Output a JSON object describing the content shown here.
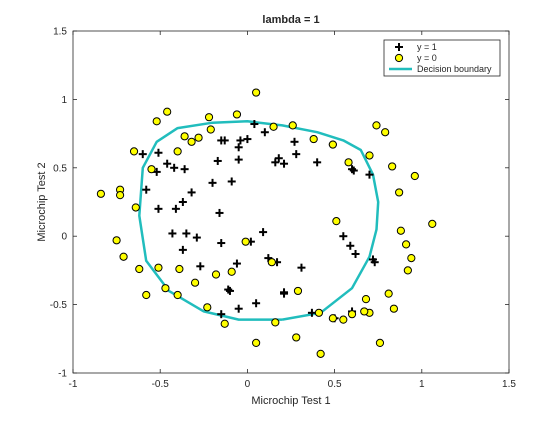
{
  "chart_data": {
    "type": "scatter",
    "title": "lambda = 1",
    "xlabel": "Microchip Test 1",
    "ylabel": "Microchip Test 2",
    "xlim": [
      -1,
      1.5
    ],
    "ylim": [
      -1,
      1.5
    ],
    "xticks": [
      "-1",
      "-0.5",
      "0",
      "0.5",
      "1",
      "1.5"
    ],
    "yticks": [
      "-1",
      "-0.5",
      "0",
      "0.5",
      "1",
      "1.5"
    ],
    "grid": false,
    "legend_position": "top-right",
    "series": [
      {
        "name": "y = 1",
        "marker": "plus",
        "color": "#000000",
        "x": [
          -0.52,
          -0.58,
          -0.46,
          -0.41,
          -0.32,
          -0.2,
          -0.09,
          -0.05,
          0.04,
          -0.13,
          -0.05,
          0.1,
          0.16,
          0.21,
          0.18,
          0.27,
          0.28,
          0.4,
          0.49,
          0.6,
          0.61,
          0.7,
          0.73,
          -0.6,
          -0.51,
          -0.42,
          -0.36,
          -0.17,
          -0.15,
          -0.04,
          0.0,
          -0.37,
          -0.51,
          -0.43,
          -0.16,
          -0.35,
          -0.29,
          -0.15,
          0.55,
          0.59,
          0.62,
          0.72,
          0.31,
          0.21,
          0.05,
          -0.05,
          -0.15,
          -0.27,
          -0.37,
          0.02,
          0.09,
          0.12,
          0.17,
          0.21,
          0.37,
          0.5,
          0.6,
          -0.1,
          -0.11,
          -0.06
        ],
        "y": [
          0.47,
          0.34,
          0.53,
          0.2,
          0.32,
          0.39,
          0.4,
          0.56,
          0.82,
          0.7,
          0.65,
          0.76,
          0.54,
          0.53,
          0.57,
          0.69,
          0.6,
          0.54,
          0.67,
          0.49,
          0.48,
          0.45,
          -0.19,
          0.6,
          0.61,
          0.5,
          0.49,
          0.55,
          0.7,
          0.7,
          0.71,
          0.25,
          0.2,
          0.02,
          0.17,
          0.02,
          -0.01,
          -0.05,
          0.0,
          -0.07,
          -0.13,
          -0.17,
          -0.23,
          -0.41,
          -0.49,
          -0.53,
          -0.57,
          -0.22,
          -0.1,
          -0.04,
          0.03,
          -0.16,
          -0.19,
          -0.42,
          -0.56,
          -0.6,
          -0.55,
          -0.4,
          -0.39,
          -0.2
        ]
      },
      {
        "name": "y = 0",
        "marker": "circle",
        "color": "#ffff00",
        "edge_color": "#000000",
        "x": [
          -0.84,
          -0.73,
          -0.64,
          -0.55,
          -0.52,
          -0.46,
          -0.4,
          -0.32,
          -0.28,
          -0.21,
          -0.06,
          0.05,
          0.15,
          0.26,
          0.38,
          0.49,
          0.58,
          0.7,
          0.74,
          0.79,
          0.83,
          0.87,
          0.88,
          0.91,
          0.94,
          1.06,
          0.92,
          0.96,
          0.81,
          0.84,
          0.7,
          0.67,
          0.6,
          0.49,
          0.41,
          0.29,
          0.16,
          0.05,
          -0.13,
          -0.23,
          -0.4,
          -0.51,
          -0.62,
          -0.71,
          -0.75,
          -0.73,
          -0.65,
          -0.58,
          -0.47,
          -0.39,
          -0.3,
          -0.18,
          -0.09,
          -0.01,
          0.14,
          0.28,
          0.42,
          0.55,
          0.68,
          0.76,
          -0.22,
          -0.36,
          0.51
        ],
        "y": [
          0.31,
          0.34,
          0.21,
          0.49,
          0.84,
          0.91,
          0.62,
          0.69,
          0.72,
          0.78,
          0.89,
          1.05,
          0.8,
          0.81,
          0.71,
          0.67,
          0.54,
          0.59,
          0.81,
          0.76,
          0.51,
          0.32,
          0.04,
          -0.06,
          -0.16,
          0.09,
          -0.25,
          0.44,
          -0.42,
          -0.53,
          -0.56,
          -0.55,
          -0.57,
          -0.6,
          -0.56,
          -0.4,
          -0.63,
          -0.78,
          -0.64,
          -0.52,
          -0.43,
          -0.23,
          -0.24,
          -0.15,
          -0.03,
          0.3,
          0.62,
          -0.43,
          -0.38,
          -0.24,
          -0.34,
          -0.28,
          -0.26,
          -0.04,
          -0.19,
          -0.74,
          -0.86,
          -0.61,
          -0.46,
          -0.78,
          0.87,
          0.73,
          0.11
        ]
      },
      {
        "name": "Decision boundary",
        "type": "line",
        "color": "#21bdbd",
        "x": [
          0.2,
          0.42,
          0.6,
          0.7,
          0.74,
          0.75,
          0.72,
          0.65,
          0.55,
          0.4,
          0.2,
          0.0,
          -0.2,
          -0.4,
          -0.52,
          -0.6,
          -0.62,
          -0.58,
          -0.45,
          -0.25,
          -0.05,
          0.2
        ],
        "y": [
          -0.61,
          -0.56,
          -0.38,
          -0.15,
          0.05,
          0.25,
          0.45,
          0.63,
          0.7,
          0.76,
          0.81,
          0.84,
          0.83,
          0.79,
          0.69,
          0.5,
          0.15,
          -0.18,
          -0.4,
          -0.55,
          -0.61,
          -0.61
        ]
      }
    ]
  }
}
